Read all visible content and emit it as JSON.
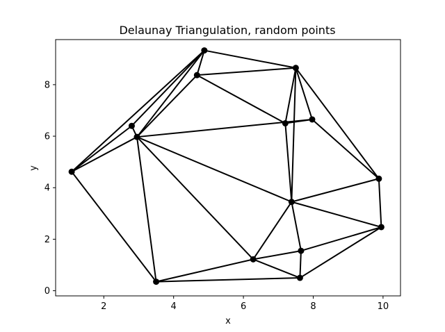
{
  "chart_data": {
    "type": "scatter",
    "title": "Delaunay Triangulation, random points",
    "xlabel": "x",
    "ylabel": "y",
    "xlim": [
      0.62,
      10.5
    ],
    "ylim": [
      -0.2,
      9.75
    ],
    "xticks": [
      "2",
      "4",
      "6",
      "8",
      "10"
    ],
    "xtick_values": [
      2,
      4,
      6,
      8,
      10
    ],
    "yticks": [
      "0",
      "2",
      "4",
      "6",
      "8"
    ],
    "ytick_values": [
      0,
      2,
      4,
      6,
      8
    ],
    "grid": false,
    "points": [
      {
        "x": 1.08,
        "y": 4.62
      },
      {
        "x": 2.8,
        "y": 6.4
      },
      {
        "x": 2.95,
        "y": 5.97
      },
      {
        "x": 4.67,
        "y": 8.37
      },
      {
        "x": 4.88,
        "y": 9.33
      },
      {
        "x": 3.5,
        "y": 0.35
      },
      {
        "x": 6.28,
        "y": 1.22
      },
      {
        "x": 7.2,
        "y": 6.5
      },
      {
        "x": 7.5,
        "y": 8.65
      },
      {
        "x": 7.97,
        "y": 6.65
      },
      {
        "x": 7.38,
        "y": 3.45
      },
      {
        "x": 7.65,
        "y": 1.55
      },
      {
        "x": 7.62,
        "y": 0.5
      },
      {
        "x": 9.88,
        "y": 4.35
      },
      {
        "x": 9.95,
        "y": 2.47
      }
    ],
    "edges": [
      [
        0,
        4
      ],
      [
        0,
        1
      ],
      [
        0,
        2
      ],
      [
        0,
        5
      ],
      [
        1,
        4
      ],
      [
        1,
        2
      ],
      [
        2,
        4
      ],
      [
        2,
        3
      ],
      [
        2,
        9
      ],
      [
        2,
        10
      ],
      [
        2,
        6
      ],
      [
        2,
        5
      ],
      [
        3,
        4
      ],
      [
        3,
        8
      ],
      [
        3,
        7
      ],
      [
        4,
        8
      ],
      [
        7,
        8
      ],
      [
        7,
        9
      ],
      [
        7,
        10
      ],
      [
        8,
        9
      ],
      [
        8,
        13
      ],
      [
        8,
        10
      ],
      [
        9,
        13
      ],
      [
        10,
        13
      ],
      [
        10,
        14
      ],
      [
        10,
        6
      ],
      [
        10,
        11
      ],
      [
        13,
        14
      ],
      [
        14,
        11
      ],
      [
        14,
        12
      ],
      [
        11,
        6
      ],
      [
        11,
        12
      ],
      [
        6,
        5
      ],
      [
        6,
        12
      ],
      [
        5,
        12
      ]
    ]
  }
}
